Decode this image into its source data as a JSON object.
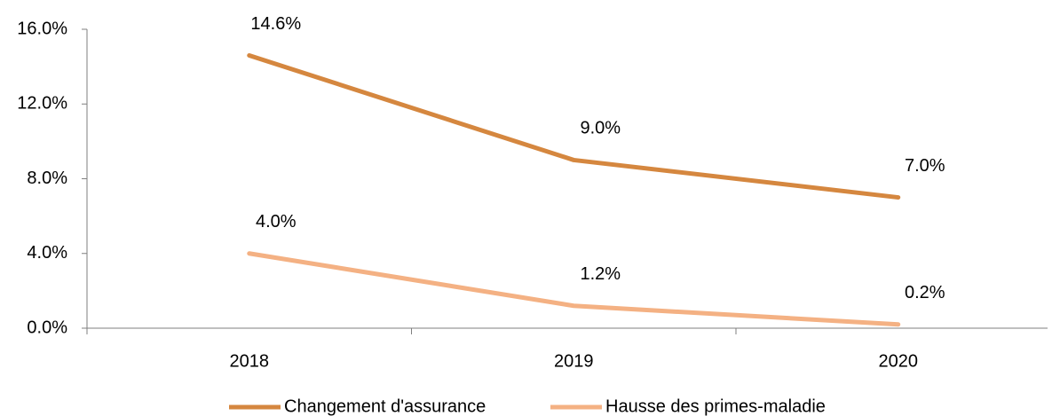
{
  "chart_data": {
    "type": "line",
    "categories": [
      "2018",
      "2019",
      "2020"
    ],
    "series": [
      {
        "name": "Changement d'assurance",
        "color": "#d5873f",
        "values": [
          14.6,
          9.0,
          7.0
        ],
        "value_labels": [
          "14.6%",
          "9.0%",
          "7.0%"
        ]
      },
      {
        "name": "Hausse des primes-maladie",
        "color": "#f4b183",
        "values": [
          4.0,
          1.2,
          0.2
        ],
        "value_labels": [
          "4.0%",
          "1.2%",
          "0.2%"
        ]
      }
    ],
    "ylim": [
      0,
      16
    ],
    "yticks": [
      {
        "value": 0,
        "label": "0.0%"
      },
      {
        "value": 4,
        "label": "4.0%"
      },
      {
        "value": 8,
        "label": "8.0%"
      },
      {
        "value": 12,
        "label": "12.0%"
      },
      {
        "value": 16,
        "label": "16.0%"
      }
    ],
    "legend": "bottom"
  }
}
